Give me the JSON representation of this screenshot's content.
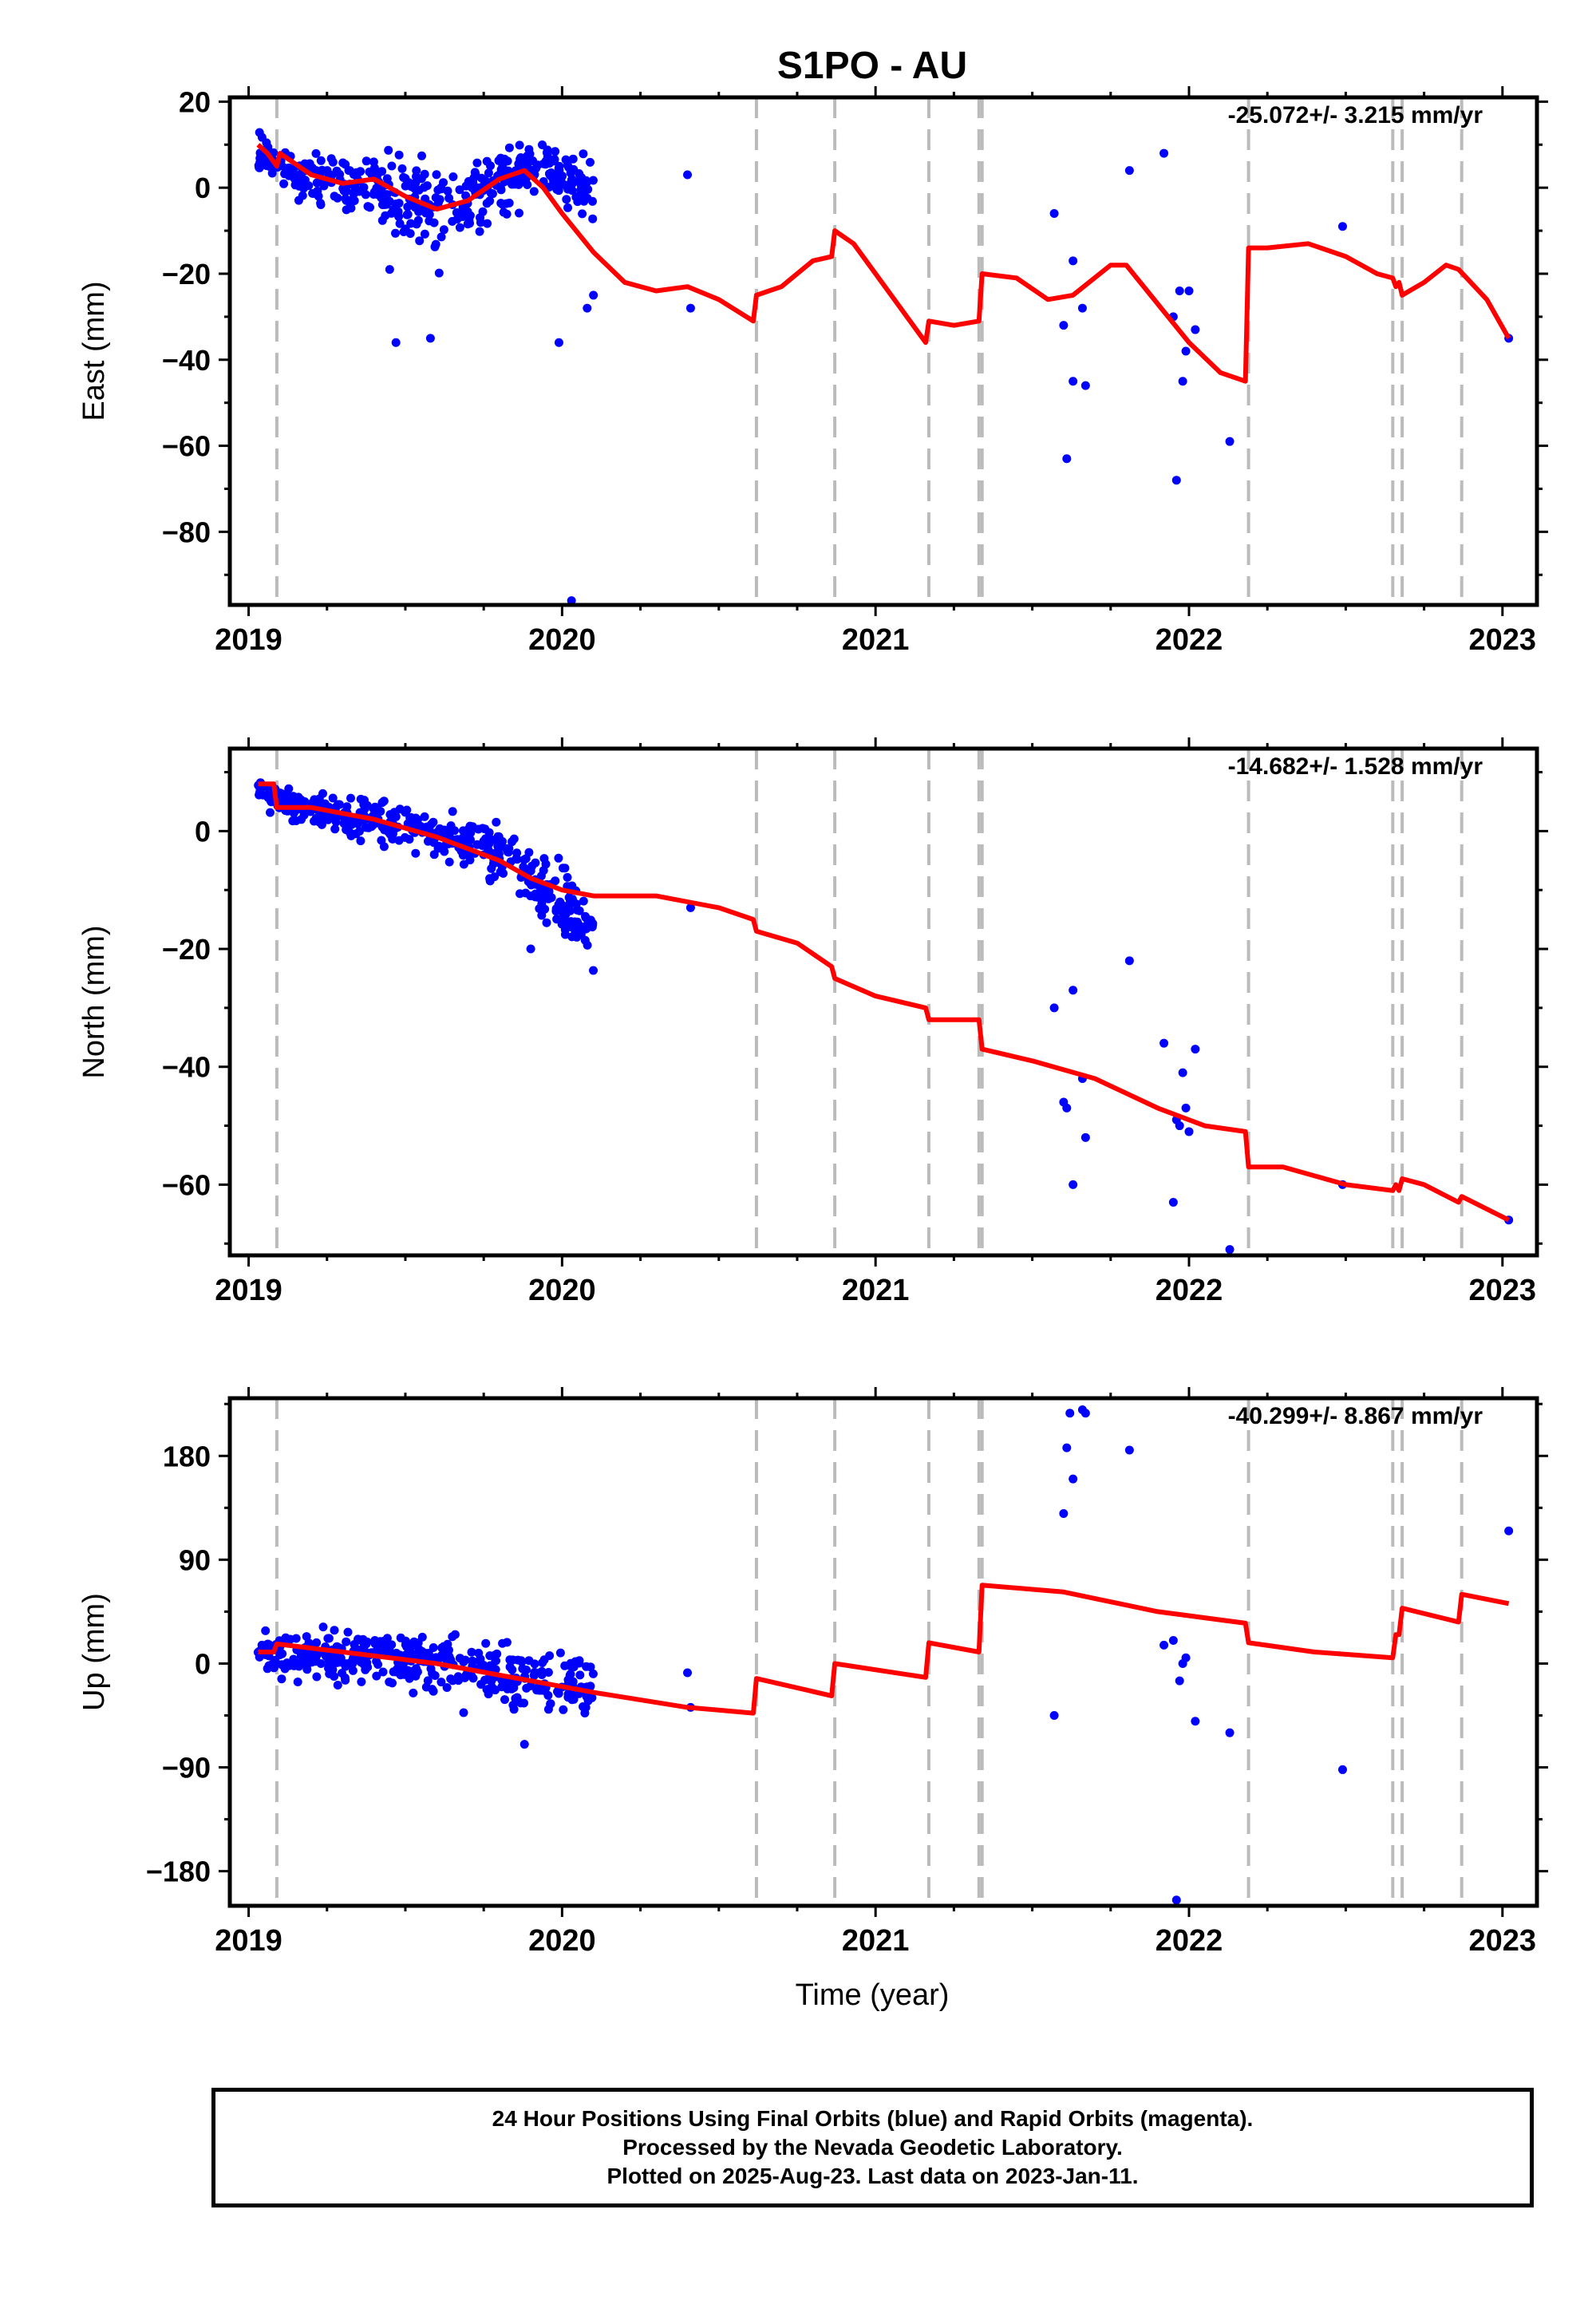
{
  "title": "S1PO - AU",
  "xlabel": "Time (year)",
  "caption": {
    "line1": "24 Hour Positions Using Final Orbits (blue) and Rapid Orbits (magenta).",
    "line2": "Processed by the Nevada Geodetic Laboratory.",
    "line3": "Plotted on 2025-Aug-23. Last data on 2023-Jan-11."
  },
  "colors": {
    "points": "#0000ff",
    "model": "#ff0000",
    "event_lines": "#bbbbbb",
    "axes": "#000000"
  },
  "chart_data": [
    {
      "type": "scatter",
      "component": "East",
      "ylabel": "East (mm)",
      "rate_text": "-25.072+/- 3.215 mm/yr",
      "xlim": [
        2018.94,
        2023.11
      ],
      "ylim": [
        -97,
        21
      ],
      "x_ticks": [
        2019,
        2020,
        2021,
        2022,
        2023
      ],
      "y_ticks": [
        20,
        0,
        -20,
        -40,
        -60,
        -80
      ],
      "y_tick_labels": [
        "20",
        "0",
        "−20",
        "−40",
        "−60",
        "−80"
      ],
      "event_lines": [
        2019.09,
        2020.62,
        2020.87,
        2021.17,
        2021.33,
        2021.34,
        2022.19,
        2022.65,
        2022.68,
        2022.87
      ],
      "scatter_2019": {
        "x_start": 2019.03,
        "x_end": 2020.1,
        "count": 420,
        "control": [
          [
            2019.03,
            9
          ],
          [
            2019.1,
            4
          ],
          [
            2019.25,
            1
          ],
          [
            2019.4,
            1
          ],
          [
            2019.55,
            -5
          ],
          [
            2019.7,
            -4
          ],
          [
            2019.8,
            0
          ],
          [
            2019.9,
            6
          ],
          [
            2020.0,
            2
          ],
          [
            2020.1,
            -1
          ]
        ],
        "spread": [
          [
            2019.03,
            4
          ],
          [
            2019.4,
            6
          ],
          [
            2019.55,
            9
          ],
          [
            2019.75,
            7
          ],
          [
            2020.1,
            6
          ]
        ]
      },
      "extra_points": [
        [
          2019.47,
          -36
        ],
        [
          2019.58,
          -35
        ],
        [
          2019.45,
          -19
        ],
        [
          2019.99,
          -36
        ],
        [
          2020.03,
          -96
        ],
        [
          2020.08,
          -28
        ],
        [
          2020.1,
          -25
        ],
        [
          2020.4,
          3
        ],
        [
          2020.41,
          -28
        ],
        [
          2021.57,
          -6
        ],
        [
          2021.6,
          -32
        ],
        [
          2021.61,
          -63
        ],
        [
          2021.63,
          -17
        ],
        [
          2021.63,
          -45
        ],
        [
          2021.66,
          -28
        ],
        [
          2021.67,
          -46
        ],
        [
          2021.81,
          4
        ],
        [
          2021.92,
          8
        ],
        [
          2021.95,
          -30
        ],
        [
          2021.96,
          -68
        ],
        [
          2021.97,
          -24
        ],
        [
          2021.98,
          -45
        ],
        [
          2021.99,
          -38
        ],
        [
          2022.0,
          -24
        ],
        [
          2022.02,
          -33
        ],
        [
          2022.13,
          -59
        ],
        [
          2022.49,
          -9
        ],
        [
          2023.02,
          -35
        ]
      ],
      "model": [
        [
          2019.03,
          10
        ],
        [
          2019.06,
          8
        ],
        [
          2019.09,
          5
        ],
        [
          2019.1,
          8
        ],
        [
          2019.2,
          3
        ],
        [
          2019.3,
          1
        ],
        [
          2019.4,
          2
        ],
        [
          2019.5,
          -2
        ],
        [
          2019.6,
          -5
        ],
        [
          2019.7,
          -3
        ],
        [
          2019.8,
          2
        ],
        [
          2019.88,
          4
        ],
        [
          2019.94,
          0
        ],
        [
          2020.0,
          -6
        ],
        [
          2020.1,
          -15
        ],
        [
          2020.2,
          -22
        ],
        [
          2020.3,
          -24
        ],
        [
          2020.4,
          -23
        ],
        [
          2020.5,
          -26
        ],
        [
          2020.61,
          -31
        ],
        [
          2020.62,
          -25
        ],
        [
          2020.7,
          -23
        ],
        [
          2020.8,
          -17
        ],
        [
          2020.86,
          -16
        ],
        [
          2020.87,
          -10
        ],
        [
          2020.93,
          -13
        ],
        [
          2021.05,
          -25
        ],
        [
          2021.16,
          -36
        ],
        [
          2021.17,
          -31
        ],
        [
          2021.25,
          -32
        ],
        [
          2021.33,
          -31
        ],
        [
          2021.34,
          -20
        ],
        [
          2021.45,
          -21
        ],
        [
          2021.55,
          -26
        ],
        [
          2021.63,
          -25
        ],
        [
          2021.75,
          -18
        ],
        [
          2021.8,
          -18
        ],
        [
          2021.9,
          -27
        ],
        [
          2022.0,
          -36
        ],
        [
          2022.1,
          -43
        ],
        [
          2022.18,
          -45
        ],
        [
          2022.19,
          -14
        ],
        [
          2022.25,
          -14
        ],
        [
          2022.38,
          -13
        ],
        [
          2022.5,
          -16
        ],
        [
          2022.6,
          -20
        ],
        [
          2022.65,
          -21
        ],
        [
          2022.66,
          -23
        ],
        [
          2022.67,
          -22
        ],
        [
          2022.68,
          -25
        ],
        [
          2022.75,
          -22
        ],
        [
          2022.82,
          -18
        ],
        [
          2022.86,
          -19
        ],
        [
          2022.95,
          -26
        ],
        [
          2023.02,
          -35
        ]
      ]
    },
    {
      "type": "scatter",
      "component": "North",
      "ylabel": "North (mm)",
      "rate_text": "-14.682+/- 1.528 mm/yr",
      "xlim": [
        2018.94,
        2023.11
      ],
      "ylim": [
        -72,
        14
      ],
      "x_ticks": [
        2019,
        2020,
        2021,
        2022,
        2023
      ],
      "y_ticks": [
        0,
        -20,
        -40,
        -60
      ],
      "y_tick_labels": [
        "0",
        "−20",
        "−40",
        "−60"
      ],
      "event_lines": [
        2019.09,
        2020.62,
        2020.87,
        2021.17,
        2021.33,
        2021.34,
        2022.19,
        2022.65,
        2022.68,
        2022.87
      ],
      "scatter_2019": {
        "x_start": 2019.03,
        "x_end": 2020.1,
        "count": 420,
        "control": [
          [
            2019.03,
            7
          ],
          [
            2019.1,
            5
          ],
          [
            2019.3,
            3
          ],
          [
            2019.5,
            1
          ],
          [
            2019.7,
            -2
          ],
          [
            2019.85,
            -5
          ],
          [
            2019.95,
            -10
          ],
          [
            2020.05,
            -14
          ],
          [
            2020.1,
            -17
          ]
        ],
        "spread": [
          [
            2019.03,
            2
          ],
          [
            2019.5,
            3
          ],
          [
            2019.9,
            4
          ],
          [
            2020.1,
            5
          ]
        ]
      },
      "extra_points": [
        [
          2019.9,
          -20
        ],
        [
          2020.41,
          -13
        ],
        [
          2021.57,
          -30
        ],
        [
          2021.6,
          -46
        ],
        [
          2021.61,
          -47
        ],
        [
          2021.63,
          -27
        ],
        [
          2021.63,
          -60
        ],
        [
          2021.66,
          -42
        ],
        [
          2021.67,
          -52
        ],
        [
          2021.81,
          -22
        ],
        [
          2021.92,
          -36
        ],
        [
          2021.95,
          -63
        ],
        [
          2021.96,
          -49
        ],
        [
          2021.97,
          -50
        ],
        [
          2021.98,
          -41
        ],
        [
          2021.99,
          -47
        ],
        [
          2022.0,
          -51
        ],
        [
          2022.02,
          -37
        ],
        [
          2022.13,
          -71
        ],
        [
          2022.49,
          -60
        ],
        [
          2023.02,
          -66
        ]
      ],
      "model": [
        [
          2019.03,
          8
        ],
        [
          2019.08,
          8
        ],
        [
          2019.09,
          4
        ],
        [
          2019.2,
          4
        ],
        [
          2019.4,
          2
        ],
        [
          2019.6,
          -1
        ],
        [
          2019.8,
          -5
        ],
        [
          2019.9,
          -8
        ],
        [
          2020.0,
          -10
        ],
        [
          2020.1,
          -11
        ],
        [
          2020.3,
          -11
        ],
        [
          2020.5,
          -13
        ],
        [
          2020.61,
          -15
        ],
        [
          2020.62,
          -17
        ],
        [
          2020.75,
          -19
        ],
        [
          2020.86,
          -23
        ],
        [
          2020.87,
          -25
        ],
        [
          2021.0,
          -28
        ],
        [
          2021.16,
          -30
        ],
        [
          2021.17,
          -32
        ],
        [
          2021.33,
          -32
        ],
        [
          2021.34,
          -37
        ],
        [
          2021.5,
          -39
        ],
        [
          2021.7,
          -42
        ],
        [
          2021.9,
          -47
        ],
        [
          2022.05,
          -50
        ],
        [
          2022.18,
          -51
        ],
        [
          2022.19,
          -57
        ],
        [
          2022.3,
          -57
        ],
        [
          2022.5,
          -60
        ],
        [
          2022.65,
          -61
        ],
        [
          2022.66,
          -60
        ],
        [
          2022.67,
          -61
        ],
        [
          2022.68,
          -59
        ],
        [
          2022.75,
          -60
        ],
        [
          2022.86,
          -63
        ],
        [
          2022.87,
          -62
        ],
        [
          2023.02,
          -66
        ]
      ]
    },
    {
      "type": "scatter",
      "component": "Up",
      "ylabel": "Up (mm)",
      "rate_text": "-40.299+/- 8.867 mm/yr",
      "xlim": [
        2018.94,
        2023.11
      ],
      "ylim": [
        -210,
        230
      ],
      "x_ticks": [
        2019,
        2020,
        2021,
        2022,
        2023
      ],
      "y_ticks": [
        180,
        90,
        0,
        -90,
        -180
      ],
      "y_tick_labels": [
        "180",
        "90",
        "0",
        "−90",
        "−180"
      ],
      "event_lines": [
        2019.09,
        2020.62,
        2020.87,
        2021.17,
        2021.33,
        2021.34,
        2022.19,
        2022.65,
        2022.68,
        2022.87
      ],
      "scatter_2019": {
        "x_start": 2019.03,
        "x_end": 2020.1,
        "count": 420,
        "control": [
          [
            2019.03,
            10
          ],
          [
            2019.5,
            5
          ],
          [
            2019.8,
            -10
          ],
          [
            2020.1,
            -20
          ]
        ],
        "spread": [
          [
            2019.03,
            14
          ],
          [
            2019.6,
            20
          ],
          [
            2020.1,
            22
          ]
        ]
      },
      "extra_points": [
        [
          2019.88,
          -70
        ],
        [
          2020.4,
          -8
        ],
        [
          2020.41,
          -38
        ],
        [
          2021.57,
          -45
        ],
        [
          2021.6,
          130
        ],
        [
          2021.61,
          187
        ],
        [
          2021.62,
          217
        ],
        [
          2021.63,
          160
        ],
        [
          2021.66,
          220
        ],
        [
          2021.67,
          217
        ],
        [
          2021.81,
          185
        ],
        [
          2021.92,
          16
        ],
        [
          2021.95,
          20
        ],
        [
          2021.96,
          -205
        ],
        [
          2021.97,
          -15
        ],
        [
          2021.98,
          0
        ],
        [
          2021.99,
          5
        ],
        [
          2022.02,
          -50
        ],
        [
          2022.13,
          -60
        ],
        [
          2022.49,
          -92
        ],
        [
          2023.02,
          115
        ]
      ],
      "model": [
        [
          2019.03,
          10
        ],
        [
          2019.08,
          10
        ],
        [
          2019.09,
          17
        ],
        [
          2019.3,
          10
        ],
        [
          2019.6,
          0
        ],
        [
          2019.9,
          -15
        ],
        [
          2020.1,
          -25
        ],
        [
          2020.4,
          -38
        ],
        [
          2020.61,
          -43
        ],
        [
          2020.62,
          -13
        ],
        [
          2020.86,
          -28
        ],
        [
          2020.87,
          0
        ],
        [
          2021.16,
          -12
        ],
        [
          2021.17,
          18
        ],
        [
          2021.33,
          10
        ],
        [
          2021.34,
          68
        ],
        [
          2021.6,
          62
        ],
        [
          2021.9,
          45
        ],
        [
          2022.18,
          35
        ],
        [
          2022.19,
          18
        ],
        [
          2022.4,
          10
        ],
        [
          2022.65,
          5
        ],
        [
          2022.66,
          25
        ],
        [
          2022.67,
          25
        ],
        [
          2022.68,
          48
        ],
        [
          2022.86,
          36
        ],
        [
          2022.87,
          60
        ],
        [
          2023.02,
          52
        ]
      ]
    }
  ]
}
